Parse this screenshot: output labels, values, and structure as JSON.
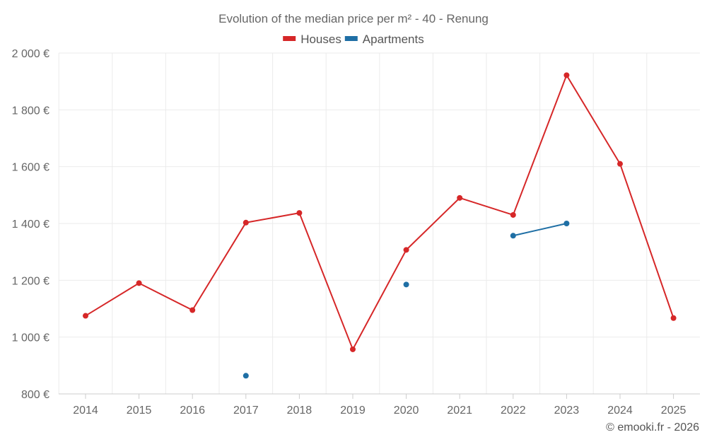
{
  "chart_data": {
    "type": "line",
    "title": "Evolution of the median price per m² - 40 - Renung",
    "xlabel": "",
    "ylabel": "",
    "categories": [
      "2014",
      "2015",
      "2016",
      "2017",
      "2018",
      "2019",
      "2020",
      "2021",
      "2022",
      "2023",
      "2024",
      "2025"
    ],
    "ylim": [
      800,
      2000
    ],
    "yticks": [
      800,
      1000,
      1200,
      1400,
      1600,
      1800,
      2000
    ],
    "ytick_labels": [
      "800 €",
      "1 000 €",
      "1 200 €",
      "1 400 €",
      "1 600 €",
      "1 800 €",
      "2 000 €"
    ],
    "grid": true,
    "legend_position": "top-center",
    "series": [
      {
        "name": "Houses",
        "color": "#d62728",
        "values": [
          1075,
          1190,
          1095,
          1403,
          1437,
          957,
          1307,
          1490,
          1430,
          1922,
          1610,
          1067
        ]
      },
      {
        "name": "Apartments",
        "color": "#1f6fa5",
        "values": [
          null,
          null,
          null,
          864,
          null,
          null,
          1185,
          null,
          1357,
          1400,
          null,
          null
        ]
      }
    ]
  },
  "credit": "© emooki.fr - 2026"
}
